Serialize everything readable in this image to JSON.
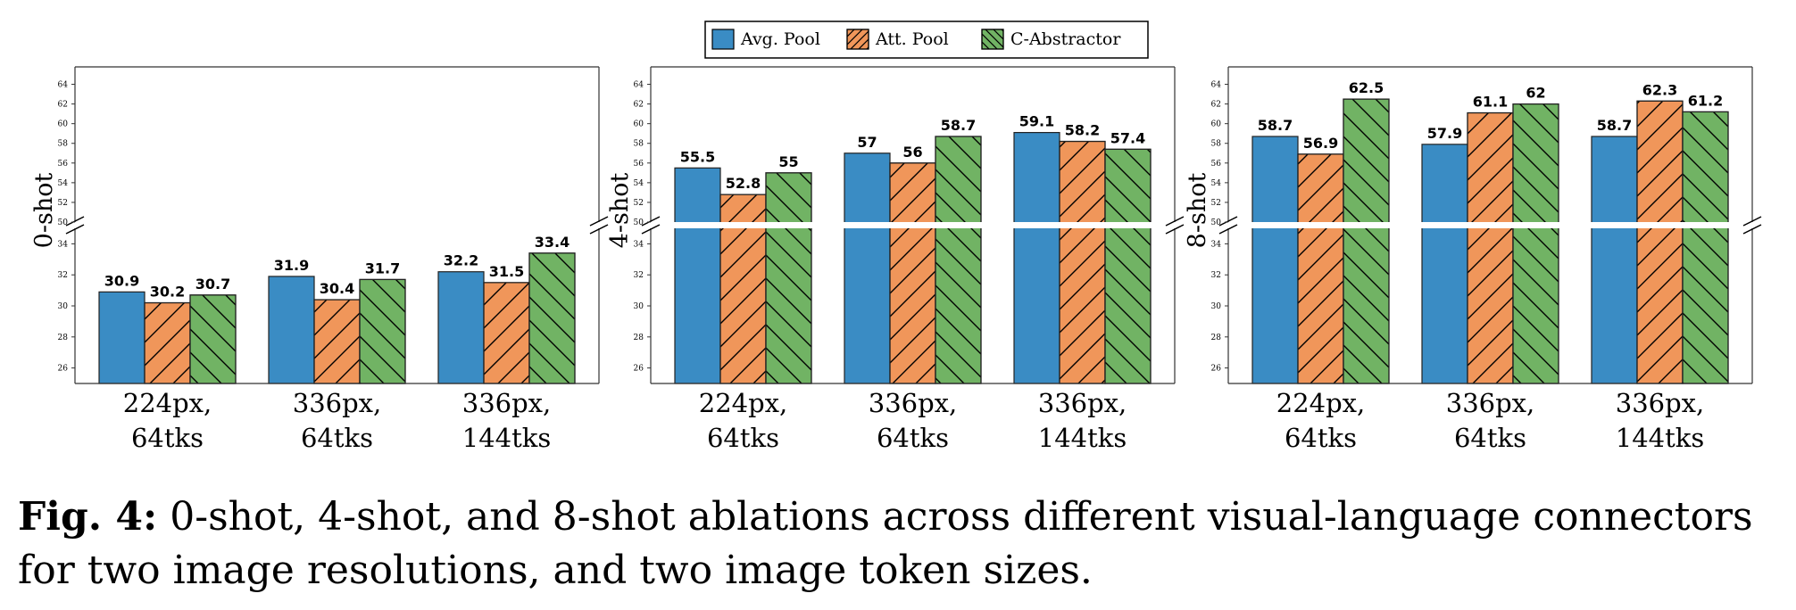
{
  "legend": {
    "items": [
      {
        "label": "Avg. Pool",
        "color": "#3a8cc4",
        "hatch": "none"
      },
      {
        "label": "Att. Pool",
        "color": "#f0965a",
        "hatch": "forward"
      },
      {
        "label": "C-Abstractor",
        "color": "#71b364",
        "hatch": "back"
      }
    ]
  },
  "chart_data": [
    {
      "type": "bar",
      "ylabel": "0-shot",
      "categories": [
        "224px,\n64tks",
        "336px,\n64tks",
        "336px,\n144tks"
      ],
      "series": [
        {
          "name": "Avg. Pool",
          "values": [
            30.9,
            31.9,
            32.2
          ]
        },
        {
          "name": "Att. Pool",
          "values": [
            30.2,
            30.4,
            31.5
          ]
        },
        {
          "name": "C-Abstractor",
          "values": [
            30.7,
            31.7,
            33.4
          ]
        }
      ],
      "value_labels": [
        [
          "30.9",
          "31.9",
          "32.2"
        ],
        [
          "30.2",
          "30.4",
          "31.5"
        ],
        [
          "30.7",
          "31.7",
          "33.4"
        ]
      ],
      "broken_axis": true,
      "ylim_lower": [
        25,
        35
      ],
      "ylim_upper": [
        50,
        65
      ],
      "yticks_lower": [
        "26",
        "28",
        "30",
        "32",
        "34"
      ],
      "yticks_upper": [
        "50",
        "52",
        "54",
        "56",
        "58",
        "60",
        "62",
        "64"
      ]
    },
    {
      "type": "bar",
      "ylabel": "4-shot",
      "categories": [
        "224px,\n64tks",
        "336px,\n64tks",
        "336px,\n144tks"
      ],
      "series": [
        {
          "name": "Avg. Pool",
          "values": [
            55.5,
            57,
            59.1
          ]
        },
        {
          "name": "Att. Pool",
          "values": [
            52.8,
            56,
            58.2
          ]
        },
        {
          "name": "C-Abstractor",
          "values": [
            55,
            58.7,
            57.4
          ]
        }
      ],
      "value_labels": [
        [
          "55.5",
          "57",
          "59.1"
        ],
        [
          "52.8",
          "56",
          "58.2"
        ],
        [
          "55",
          "58.7",
          "57.4"
        ]
      ],
      "broken_axis": true,
      "ylim_lower": [
        25,
        35
      ],
      "ylim_upper": [
        50,
        65
      ],
      "yticks_lower": [
        "26",
        "28",
        "30",
        "32",
        "34"
      ],
      "yticks_upper": [
        "50",
        "52",
        "54",
        "56",
        "58",
        "60",
        "62",
        "64"
      ]
    },
    {
      "type": "bar",
      "ylabel": "8-shot",
      "categories": [
        "224px,\n64tks",
        "336px,\n64tks",
        "336px,\n144tks"
      ],
      "series": [
        {
          "name": "Avg. Pool",
          "values": [
            58.7,
            57.9,
            58.7
          ]
        },
        {
          "name": "Att. Pool",
          "values": [
            56.9,
            61.1,
            62.3
          ]
        },
        {
          "name": "C-Abstractor",
          "values": [
            62.5,
            62,
            61.2
          ]
        }
      ],
      "value_labels": [
        [
          "58.7",
          "57.9",
          "58.7"
        ],
        [
          "56.9",
          "61.1",
          "62.3"
        ],
        [
          "62.5",
          "62",
          "61.2"
        ]
      ],
      "broken_axis": true,
      "ylim_lower": [
        25,
        35
      ],
      "ylim_upper": [
        50,
        65
      ],
      "yticks_lower": [
        "26",
        "28",
        "30",
        "32",
        "34"
      ],
      "yticks_upper": [
        "50",
        "52",
        "54",
        "56",
        "58",
        "60",
        "62",
        "64"
      ]
    }
  ],
  "caption": {
    "label": "Fig. 4:",
    "text": " 0-shot, 4-shot, and 8-shot ablations across different visual-language connectors for two image resolutions, and two image token sizes."
  }
}
